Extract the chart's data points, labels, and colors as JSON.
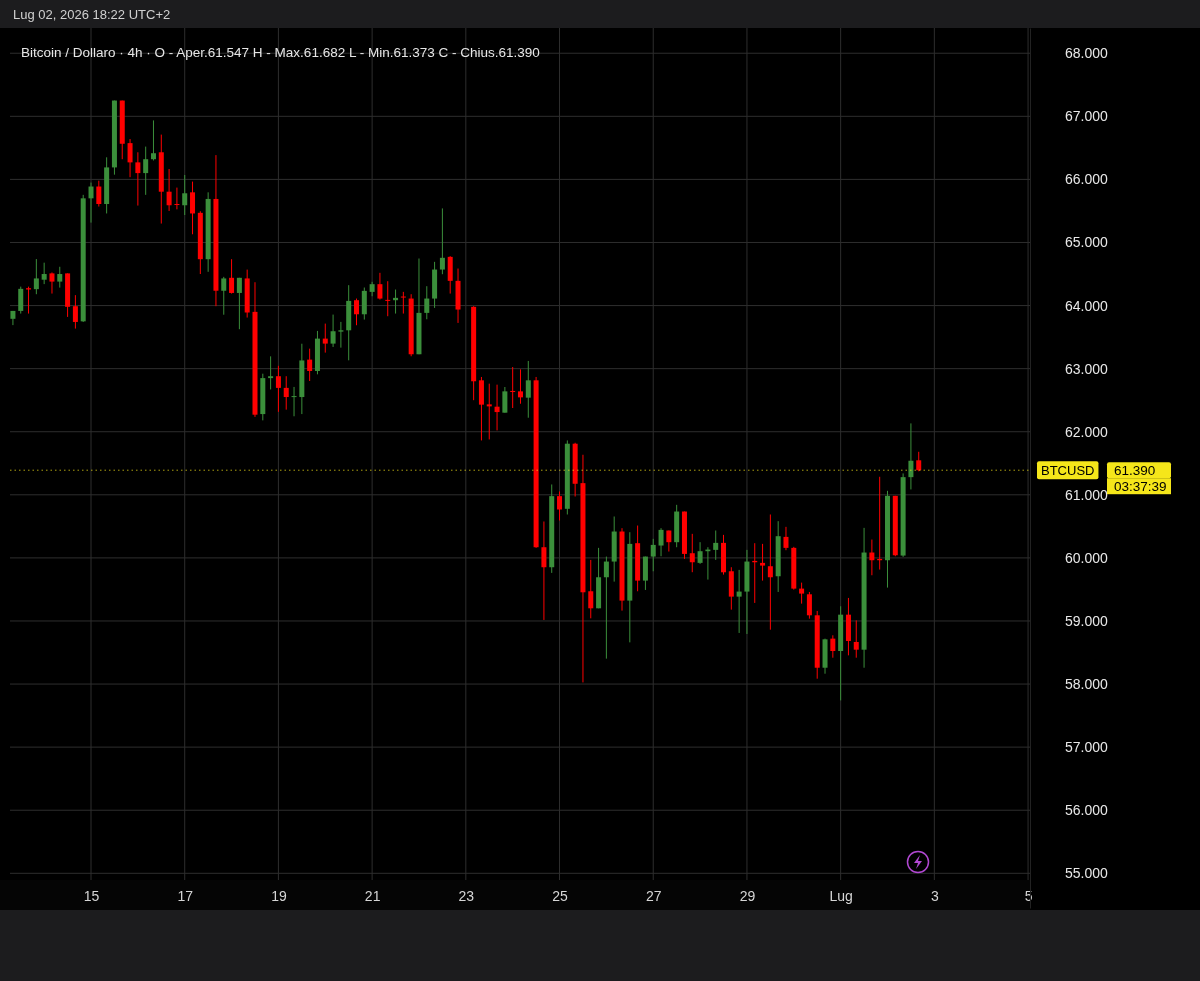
{
  "chart_data": {
    "type": "candlestick",
    "title": "Bitcoin / Dollaro · 4h · O - Aper.61.547 H - Max.61.682 L - Min.61.373 C - Chius.61.390",
    "subtitle": "Lug 02, 2026 18:22 UTC+2",
    "x": [
      "2026-06-13T08:00",
      "2026-06-13T12:00",
      "2026-06-13T16:00",
      "2026-06-13T20:00",
      "2026-06-14T00:00",
      "2026-06-14T04:00",
      "2026-06-14T08:00",
      "2026-06-14T12:00",
      "2026-06-14T16:00",
      "2026-06-14T20:00",
      "2026-06-15T00:00",
      "2026-06-15T04:00",
      "2026-06-15T08:00",
      "2026-06-15T12:00",
      "2026-06-15T16:00",
      "2026-06-15T20:00",
      "2026-06-16T00:00",
      "2026-06-16T04:00",
      "2026-06-16T08:00",
      "2026-06-16T12:00",
      "2026-06-16T16:00",
      "2026-06-16T20:00",
      "2026-06-17T00:00",
      "2026-06-17T04:00",
      "2026-06-17T08:00",
      "2026-06-17T12:00",
      "2026-06-17T16:00",
      "2026-06-17T20:00",
      "2026-06-18T00:00",
      "2026-06-18T04:00",
      "2026-06-18T08:00",
      "2026-06-18T12:00",
      "2026-06-18T16:00",
      "2026-06-18T20:00",
      "2026-06-19T00:00",
      "2026-06-19T04:00",
      "2026-06-19T08:00",
      "2026-06-19T12:00",
      "2026-06-19T16:00",
      "2026-06-19T20:00",
      "2026-06-20T00:00",
      "2026-06-20T04:00",
      "2026-06-20T08:00",
      "2026-06-20T12:00",
      "2026-06-20T16:00",
      "2026-06-20T20:00",
      "2026-06-21T00:00",
      "2026-06-21T04:00",
      "2026-06-21T08:00",
      "2026-06-21T12:00",
      "2026-06-21T16:00",
      "2026-06-21T20:00",
      "2026-06-22T00:00",
      "2026-06-22T04:00",
      "2026-06-22T08:00",
      "2026-06-22T12:00",
      "2026-06-22T16:00",
      "2026-06-22T20:00",
      "2026-06-23T04:00",
      "2026-06-23T08:00",
      "2026-06-23T12:00",
      "2026-06-23T16:00",
      "2026-06-23T20:00",
      "2026-06-24T00:00",
      "2026-06-24T04:00",
      "2026-06-24T08:00",
      "2026-06-24T12:00",
      "2026-06-24T16:00",
      "2026-06-24T20:00",
      "2026-06-25T00:00",
      "2026-06-25T04:00",
      "2026-06-25T08:00",
      "2026-06-25T12:00",
      "2026-06-25T16:00",
      "2026-06-25T20:00",
      "2026-06-26T00:00",
      "2026-06-26T04:00",
      "2026-06-26T08:00",
      "2026-06-26T12:00",
      "2026-06-26T16:00",
      "2026-06-26T20:00",
      "2026-06-27T00:00",
      "2026-06-27T04:00",
      "2026-06-27T08:00",
      "2026-06-27T12:00",
      "2026-06-27T16:00",
      "2026-06-27T20:00",
      "2026-06-28T00:00",
      "2026-06-28T04:00",
      "2026-06-28T08:00",
      "2026-06-28T12:00",
      "2026-06-28T16:00",
      "2026-06-28T20:00",
      "2026-06-29T00:00",
      "2026-06-29T04:00",
      "2026-06-29T08:00",
      "2026-06-29T12:00",
      "2026-06-29T16:00",
      "2026-06-29T20:00",
      "2026-06-30T00:00",
      "2026-06-30T04:00",
      "2026-06-30T08:00",
      "2026-06-30T12:00",
      "2026-06-30T16:00",
      "2026-06-30T20:00",
      "2026-07-01T00:00",
      "2026-07-01T04:00",
      "2026-07-01T08:00",
      "2026-07-01T12:00",
      "2026-07-01T16:00",
      "2026-07-01T20:00",
      "2026-07-02T00:00",
      "2026-07-02T04:00",
      "2026-07-02T08:00",
      "2026-07-02T12:00",
      "2026-07-02T16:00"
    ],
    "ohlc": [
      [
        63790,
        63915,
        63690,
        63915
      ],
      [
        63915,
        64300,
        63873,
        64265
      ],
      [
        64275,
        64300,
        63873,
        64255
      ],
      [
        64260,
        64737,
        64180,
        64430
      ],
      [
        64410,
        64680,
        64340,
        64500
      ],
      [
        64510,
        64525,
        64190,
        64380
      ],
      [
        64380,
        64615,
        64285,
        64500
      ],
      [
        64510,
        64510,
        63820,
        63980
      ],
      [
        63990,
        64165,
        63635,
        63740
      ],
      [
        63750,
        65755,
        63740,
        65700
      ],
      [
        65700,
        65950,
        65315,
        65887
      ],
      [
        65887,
        65980,
        65570,
        65610
      ],
      [
        65610,
        66350,
        65460,
        66190
      ],
      [
        66190,
        67250,
        66075,
        67250
      ],
      [
        67250,
        67250,
        66320,
        66565
      ],
      [
        66575,
        66640,
        66035,
        66270
      ],
      [
        66270,
        66430,
        65585,
        66100
      ],
      [
        66100,
        66520,
        65755,
        66320
      ],
      [
        66320,
        66935,
        66300,
        66415
      ],
      [
        66430,
        66710,
        65300,
        65805
      ],
      [
        65805,
        66165,
        65500,
        65590
      ],
      [
        65610,
        65870,
        65525,
        65595
      ],
      [
        65590,
        66070,
        65435,
        65780
      ],
      [
        65795,
        65965,
        65130,
        65460
      ],
      [
        65470,
        65495,
        64500,
        64735
      ],
      [
        64735,
        65795,
        64535,
        65690
      ],
      [
        65690,
        66385,
        63990,
        64235
      ],
      [
        64235,
        64455,
        63855,
        64430
      ],
      [
        64440,
        64735,
        64190,
        64200
      ],
      [
        64200,
        64440,
        63625,
        64440
      ],
      [
        64430,
        64570,
        63810,
        63890
      ],
      [
        63900,
        64370,
        62235,
        62270
      ],
      [
        62280,
        62920,
        62180,
        62850
      ],
      [
        62850,
        63195,
        62670,
        62880
      ],
      [
        62880,
        63045,
        62315,
        62695
      ],
      [
        62695,
        62880,
        62350,
        62550
      ],
      [
        62550,
        62710,
        62245,
        62565
      ],
      [
        62550,
        63395,
        62280,
        63130
      ],
      [
        63143,
        63317,
        62804,
        62963
      ],
      [
        62963,
        63598,
        62910,
        63476
      ],
      [
        63476,
        63714,
        63254,
        63397
      ],
      [
        63397,
        63857,
        63344,
        63593
      ],
      [
        63587,
        63741,
        63333,
        63608
      ],
      [
        63608,
        64323,
        63132,
        64074
      ],
      [
        64085,
        64111,
        63688,
        63862
      ],
      [
        63862,
        64286,
        63778,
        64233
      ],
      [
        64217,
        64376,
        64148,
        64339
      ],
      [
        64339,
        64519,
        64095,
        64111
      ],
      [
        64090,
        64386,
        63831,
        64080
      ],
      [
        64085,
        64254,
        63873,
        64122
      ],
      [
        64143,
        64217,
        63873,
        64127
      ],
      [
        64111,
        64180,
        63196,
        63228
      ],
      [
        63228,
        64746,
        63228,
        63884
      ],
      [
        63884,
        64307,
        63783,
        64111
      ],
      [
        64111,
        64693,
        63963,
        64571
      ],
      [
        64571,
        65540,
        64497,
        64757
      ],
      [
        64772,
        64783,
        64190,
        64392
      ],
      [
        64392,
        64587,
        63725,
        63937
      ],
      [
        63980,
        63990,
        62500,
        62800
      ],
      [
        62815,
        62868,
        61862,
        62429
      ],
      [
        62434,
        62762,
        61878,
        62402
      ],
      [
        62397,
        62746,
        62021,
        62312
      ],
      [
        62302,
        62709,
        62302,
        62640
      ],
      [
        62646,
        63026,
        62376,
        62635
      ],
      [
        62640,
        62989,
        62444,
        62545
      ],
      [
        62540,
        63122,
        62222,
        62815
      ],
      [
        62815,
        62868,
        60159,
        60169
      ],
      [
        60169,
        60577,
        59016,
        59852
      ],
      [
        59852,
        61164,
        59762,
        60979
      ],
      [
        60979,
        61053,
        60593,
        60767
      ],
      [
        60778,
        61862,
        60688,
        61810
      ],
      [
        61810,
        61825,
        60973,
        61175
      ],
      [
        61185,
        61635,
        58026,
        59455
      ],
      [
        59471,
        59968,
        59042,
        59201
      ],
      [
        59201,
        60159,
        59201,
        59693
      ],
      [
        59693,
        60021,
        58403,
        59942
      ],
      [
        59942,
        60656,
        59624,
        60418
      ],
      [
        60418,
        60471,
        59164,
        59323
      ],
      [
        59323,
        60407,
        58661,
        60222
      ],
      [
        60233,
        60513,
        59471,
        59640
      ],
      [
        59640,
        60021,
        59492,
        60021
      ],
      [
        60021,
        60302,
        59788,
        60206
      ],
      [
        60196,
        60471,
        60026,
        60444
      ],
      [
        60434,
        60434,
        60101,
        60249
      ],
      [
        60249,
        60841,
        60169,
        60735
      ],
      [
        60735,
        60735,
        59984,
        60063
      ],
      [
        60074,
        60381,
        59773,
        59931
      ],
      [
        59921,
        60249,
        59905,
        60106
      ],
      [
        60106,
        60169,
        59656,
        60132
      ],
      [
        60127,
        60434,
        59968,
        60238
      ],
      [
        60238,
        60365,
        59735,
        59772
      ],
      [
        59788,
        59852,
        59180,
        59386
      ],
      [
        59386,
        59810,
        58810,
        59466
      ],
      [
        59466,
        60127,
        58794,
        59942
      ],
      [
        59952,
        60233,
        59286,
        59931
      ],
      [
        59921,
        60222,
        59640,
        59878
      ],
      [
        59868,
        60688,
        58862,
        59693
      ],
      [
        59709,
        60582,
        59460,
        60344
      ],
      [
        60333,
        60492,
        60122,
        60159
      ],
      [
        60159,
        60175,
        59497,
        59513
      ],
      [
        59513,
        59608,
        59275,
        59434
      ],
      [
        59423,
        59460,
        59037,
        59090
      ],
      [
        59090,
        59159,
        58085,
        58259
      ],
      [
        58259,
        58720,
        58164,
        58709
      ],
      [
        58720,
        58773,
        58418,
        58524
      ],
      [
        58524,
        59233,
        57741,
        59100
      ],
      [
        59100,
        59365,
        58455,
        58683
      ],
      [
        58667,
        59010,
        58418,
        58545
      ],
      [
        58545,
        60476,
        58259,
        60085
      ],
      [
        60085,
        60291,
        59725,
        59963
      ],
      [
        59984,
        61286,
        59815,
        59963
      ],
      [
        59963,
        61063,
        59529,
        60984
      ],
      [
        60984,
        60984,
        60026,
        60042
      ],
      [
        60037,
        61339,
        60016,
        61280
      ],
      [
        61280,
        62132,
        61085,
        61540
      ],
      [
        61547,
        61682,
        61373,
        61390
      ]
    ],
    "colors": [
      "#3b8f3b",
      "#3b8f3b",
      "#ff0000",
      "#3b8f3b",
      "#3b8f3b",
      "#ff0000",
      "#3b8f3b",
      "#ff0000",
      "#ff0000",
      "#3b8f3b",
      "#3b8f3b",
      "#ff0000",
      "#3b8f3b",
      "#3b8f3b",
      "#ff0000",
      "#ff0000",
      "#ff0000",
      "#3b8f3b",
      "#3b8f3b",
      "#ff0000",
      "#ff0000",
      "#ff0000",
      "#3b8f3b",
      "#ff0000",
      "#ff0000",
      "#3b8f3b",
      "#ff0000",
      "#3b8f3b",
      "#ff0000",
      "#3b8f3b",
      "#ff0000",
      "#ff0000",
      "#3b8f3b",
      "#3b8f3b",
      "#ff0000",
      "#ff0000",
      "#3b8f3b",
      "#3b8f3b",
      "#ff0000",
      "#3b8f3b",
      "#ff0000",
      "#3b8f3b",
      "#3b8f3b",
      "#3b8f3b",
      "#ff0000",
      "#3b8f3b",
      "#3b8f3b",
      "#ff0000",
      "#ff0000",
      "#3b8f3b",
      "#ff0000",
      "#ff0000",
      "#3b8f3b",
      "#3b8f3b",
      "#3b8f3b",
      "#3b8f3b",
      "#ff0000",
      "#ff0000",
      "#ff0000",
      "#ff0000",
      "#ff0000",
      "#ff0000",
      "#3b8f3b",
      "#ff0000",
      "#ff0000",
      "#3b8f3b",
      "#ff0000",
      "#ff0000",
      "#3b8f3b",
      "#ff0000",
      "#3b8f3b",
      "#ff0000",
      "#ff0000",
      "#ff0000",
      "#3b8f3b",
      "#3b8f3b",
      "#3b8f3b",
      "#ff0000",
      "#3b8f3b",
      "#ff0000",
      "#3b8f3b",
      "#3b8f3b",
      "#3b8f3b",
      "#ff0000",
      "#3b8f3b",
      "#ff0000",
      "#ff0000",
      "#3b8f3b",
      "#3b8f3b",
      "#3b8f3b",
      "#ff0000",
      "#ff0000",
      "#3b8f3b",
      "#3b8f3b",
      "#ff0000",
      "#ff0000",
      "#ff0000",
      "#3b8f3b",
      "#ff0000",
      "#ff0000",
      "#ff0000",
      "#ff0000",
      "#ff0000",
      "#3b8f3b",
      "#ff0000",
      "#3b8f3b",
      "#ff0000",
      "#ff0000",
      "#3b8f3b",
      "#ff0000",
      "#ff0000",
      "#3b8f3b",
      "#ff0000",
      "#3b8f3b",
      "#3b8f3b",
      "#ff0000"
    ],
    "xlim": [
      "2026-06-13T06:30",
      "2026-07-05T01:00"
    ],
    "xticks": [
      {
        "value": "2026-06-15",
        "label": "15"
      },
      {
        "value": "2026-06-17",
        "label": "17"
      },
      {
        "value": "2026-06-19",
        "label": "19"
      },
      {
        "value": "2026-06-21",
        "label": "21"
      },
      {
        "value": "2026-06-23",
        "label": "23"
      },
      {
        "value": "2026-06-25",
        "label": "25"
      },
      {
        "value": "2026-06-27",
        "label": "27"
      },
      {
        "value": "2026-06-29",
        "label": "29"
      },
      {
        "value": "2026-07-01",
        "label": "Lug"
      },
      {
        "value": "2026-07-03",
        "label": "3"
      },
      {
        "value": "2026-07-05",
        "label": "5"
      }
    ],
    "ylim": [
      54450,
      68400
    ],
    "yticks": [
      {
        "value": 55000,
        "label": "55.000"
      },
      {
        "value": 56000,
        "label": "56.000"
      },
      {
        "value": 57000,
        "label": "57.000"
      },
      {
        "value": 58000,
        "label": "58.000"
      },
      {
        "value": 59000,
        "label": "59.000"
      },
      {
        "value": 60000,
        "label": "60.000"
      },
      {
        "value": 61000,
        "label": "61.000"
      },
      {
        "value": 62000,
        "label": "62.000"
      },
      {
        "value": 63000,
        "label": "63.000"
      },
      {
        "value": 64000,
        "label": "64.000"
      },
      {
        "value": 65000,
        "label": "65.000"
      },
      {
        "value": 66000,
        "label": "66.000"
      },
      {
        "value": 67000,
        "label": "67.000"
      },
      {
        "value": 68000,
        "label": "68.000"
      }
    ],
    "grid": true,
    "ref_lines": [
      {
        "axis": "y",
        "value": 61390,
        "label": "BTCUSD",
        "color": "#f5e61a",
        "line_style": "dotted"
      }
    ],
    "annotations": [
      "61.390",
      "03:37:39"
    ]
  }
}
